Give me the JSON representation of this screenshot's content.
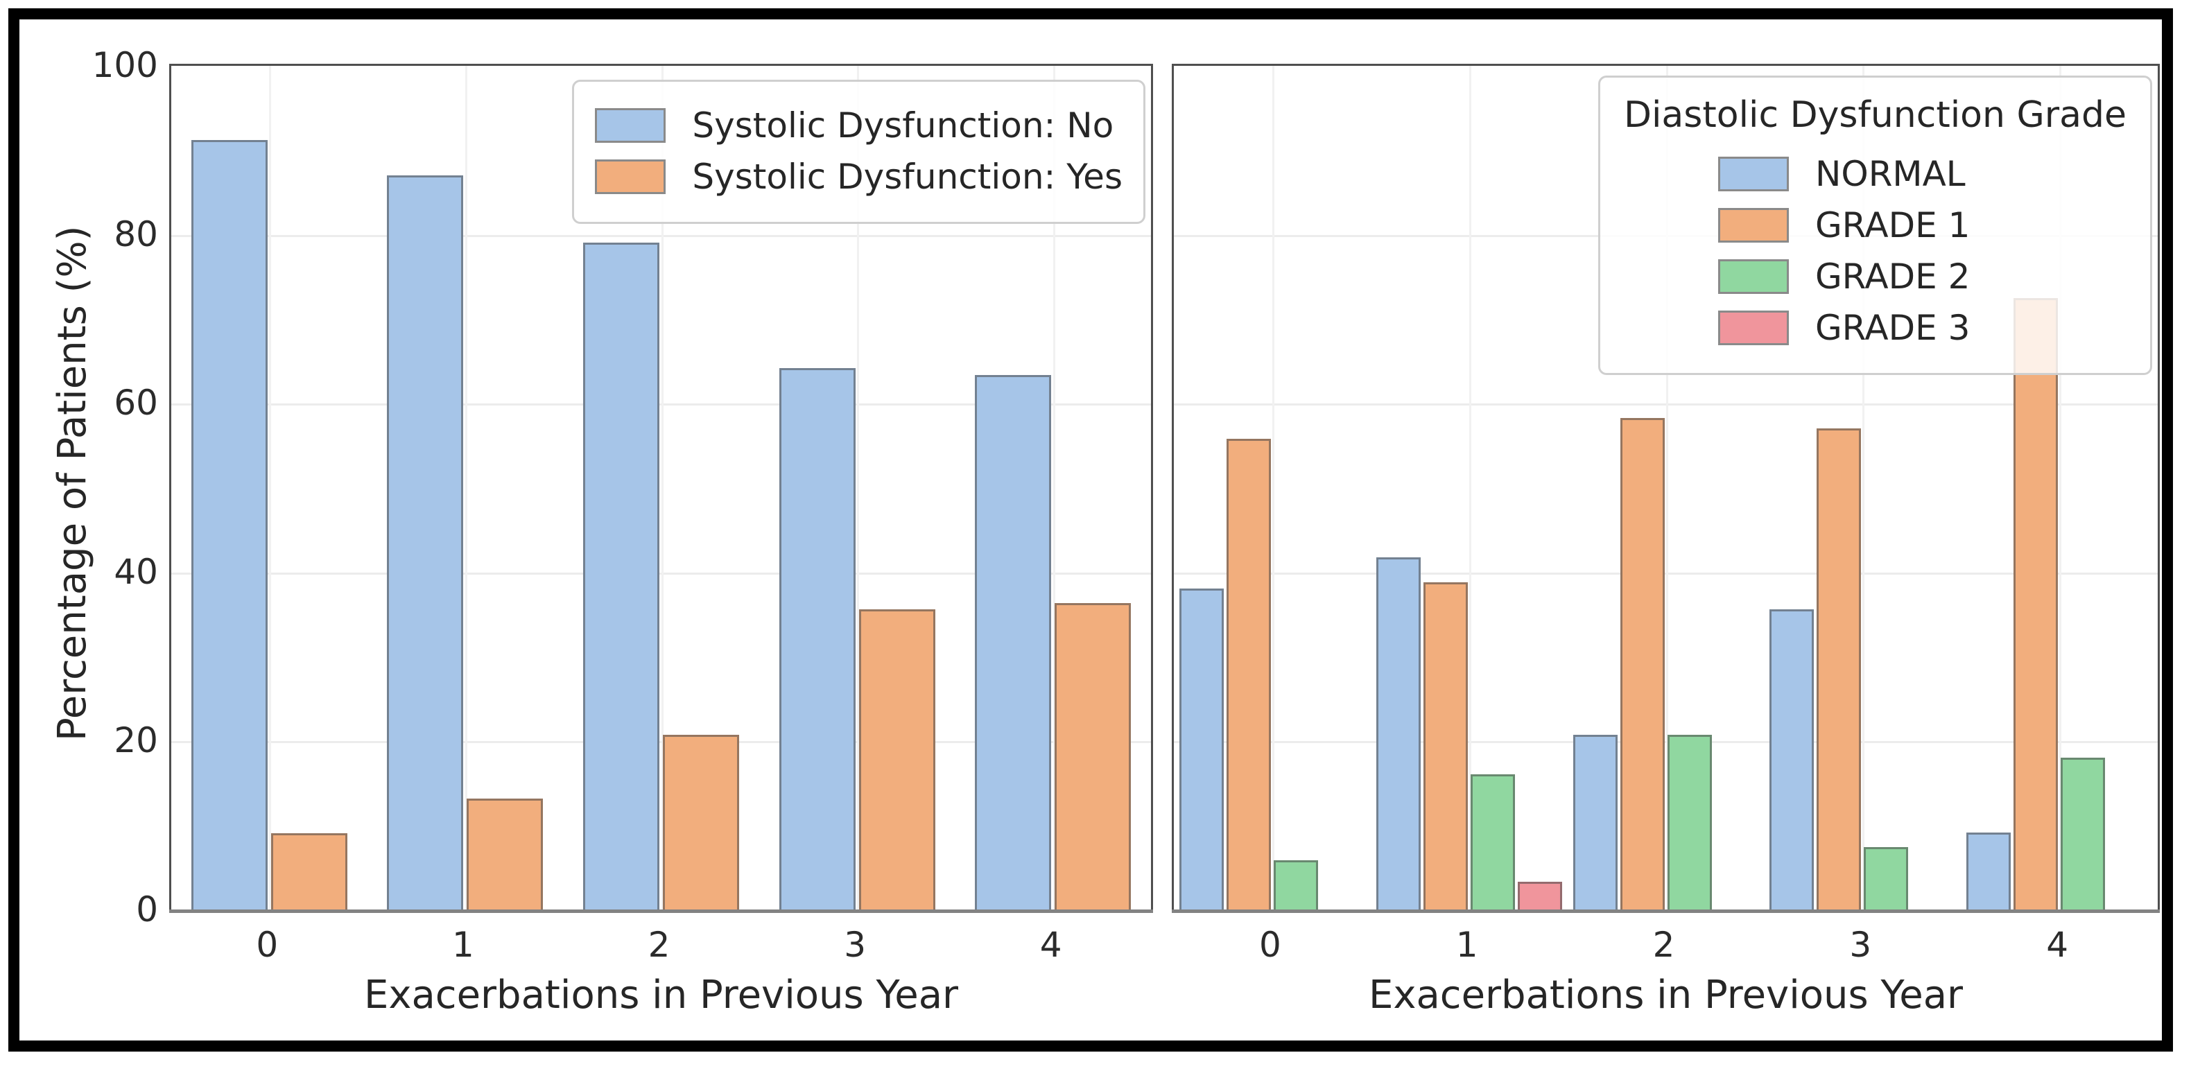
{
  "figure": {
    "outer_border_color": "#000000",
    "background_color": "#ffffff",
    "grid_color": "#ececec",
    "spine_color": "#4f4f4f",
    "text_color": "#262626"
  },
  "chart_data": [
    {
      "type": "bar",
      "panel": "left",
      "title": "",
      "categories": [
        "0",
        "1",
        "2",
        "3",
        "4"
      ],
      "series": [
        {
          "name": "Systolic Dysfunction: No",
          "color": "#a6c5e8",
          "values": [
            91.2,
            87.0,
            79.1,
            64.2,
            63.4
          ]
        },
        {
          "name": "Systolic Dysfunction: Yes",
          "color": "#f2ae7d",
          "values": [
            9.1,
            13.2,
            20.8,
            35.6,
            36.4
          ]
        }
      ],
      "xlabel": "Exacerbations in Previous Year",
      "ylabel": "Percentage of Patients (%)",
      "ylim": [
        0,
        100
      ],
      "yticks": [
        0,
        20,
        40,
        60,
        80,
        100
      ],
      "grid": true,
      "legend": {
        "title": "",
        "position": "upper right"
      }
    },
    {
      "type": "bar",
      "panel": "right",
      "title": "",
      "categories": [
        "0",
        "1",
        "2",
        "3",
        "4"
      ],
      "series": [
        {
          "name": "NORMAL",
          "color": "#a6c5e8",
          "values": [
            38.1,
            41.8,
            20.8,
            35.6,
            9.2
          ]
        },
        {
          "name": "GRADE 1",
          "color": "#f2ae7d",
          "values": [
            55.8,
            38.8,
            58.3,
            57.1,
            72.5
          ]
        },
        {
          "name": "GRADE 2",
          "color": "#90d7a0",
          "values": [
            5.9,
            16.1,
            20.8,
            7.5,
            18.1
          ]
        },
        {
          "name": "GRADE 3",
          "color": "#f0959c",
          "values": [
            0,
            3.4,
            0,
            0,
            0
          ]
        }
      ],
      "xlabel": "Exacerbations in Previous Year",
      "ylabel": "",
      "ylim": [
        0,
        100
      ],
      "yticks": [
        0,
        20,
        40,
        60,
        80,
        100
      ],
      "grid": true,
      "legend": {
        "title": "Diastolic Dysfunction Grade",
        "position": "upper right"
      }
    }
  ]
}
